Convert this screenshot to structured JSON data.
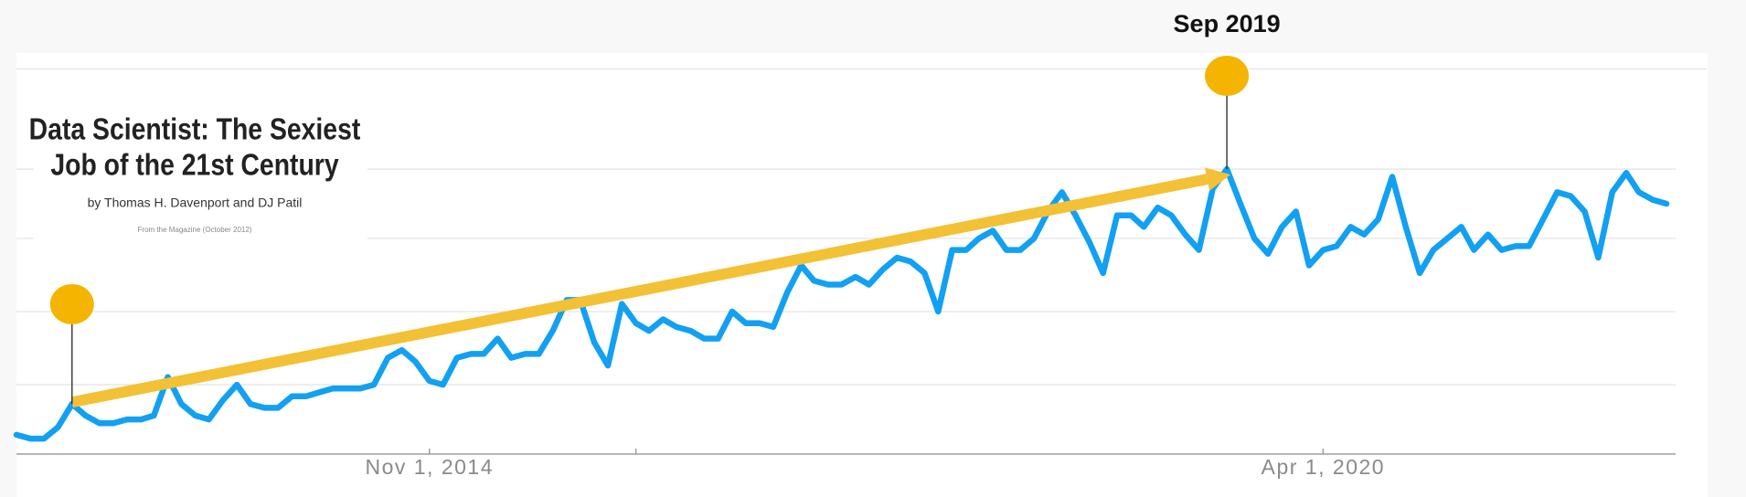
{
  "chart_data": {
    "type": "line",
    "x": [
      "2012-05-01",
      "2012-06-01",
      "2012-07-01",
      "2012-08-01",
      "2012-09-01",
      "2012-10-01",
      "2012-11-01",
      "2012-12-01",
      "2013-01-01",
      "2013-02-01",
      "2013-03-01",
      "2013-04-01",
      "2013-05-01",
      "2013-06-01",
      "2013-07-01",
      "2013-08-01",
      "2013-09-01",
      "2013-10-01",
      "2013-11-01",
      "2013-12-01",
      "2014-01-01",
      "2014-02-01",
      "2014-03-01",
      "2014-04-01",
      "2014-05-01",
      "2014-06-01",
      "2014-07-01",
      "2014-08-01",
      "2014-09-01",
      "2014-10-01",
      "2014-11-01",
      "2014-12-01",
      "2015-01-01",
      "2015-02-01",
      "2015-03-01",
      "2015-04-01",
      "2015-05-01",
      "2015-06-01",
      "2015-07-01",
      "2015-08-01",
      "2015-09-01",
      "2015-10-01",
      "2015-11-01",
      "2015-12-01",
      "2016-01-01",
      "2016-02-01",
      "2016-03-01",
      "2016-04-01",
      "2016-05-01",
      "2016-06-01",
      "2016-07-01",
      "2016-08-01",
      "2016-09-01",
      "2016-10-01",
      "2016-11-01",
      "2016-12-01",
      "2017-01-01",
      "2017-02-01",
      "2017-03-01",
      "2017-04-01",
      "2017-05-01",
      "2017-06-01",
      "2017-07-01",
      "2017-08-01",
      "2017-09-01",
      "2017-10-01",
      "2017-11-01",
      "2017-12-01",
      "2018-01-01",
      "2018-02-01",
      "2018-03-01",
      "2018-04-01",
      "2018-05-01",
      "2018-06-01",
      "2018-07-01",
      "2018-08-01",
      "2018-09-01",
      "2018-10-01",
      "2018-11-01",
      "2018-12-01",
      "2019-01-01",
      "2019-02-01",
      "2019-03-01",
      "2019-04-01",
      "2019-05-01",
      "2019-06-01",
      "2019-07-01",
      "2019-08-01",
      "2019-09-01",
      "2019-10-01",
      "2019-11-01",
      "2019-12-01",
      "2020-01-01",
      "2020-02-01",
      "2020-03-01",
      "2020-04-01",
      "2020-05-01",
      "2020-06-01",
      "2020-07-01",
      "2020-08-01",
      "2020-09-01",
      "2020-10-01",
      "2020-11-01",
      "2020-12-01",
      "2021-01-01",
      "2021-02-01",
      "2021-03-01",
      "2021-04-01",
      "2021-05-01",
      "2021-06-01",
      "2021-07-01",
      "2021-08-01",
      "2021-09-01",
      "2021-10-01",
      "2021-11-01",
      "2021-12-01",
      "2022-01-01",
      "2022-02-01",
      "2022-03-01",
      "2022-04-01",
      "2022-05-01"
    ],
    "values": [
      5,
      4,
      4,
      7,
      13,
      10,
      8,
      8,
      9,
      9,
      10,
      20,
      13,
      10,
      9,
      14,
      18,
      13,
      12,
      12,
      15,
      15,
      16,
      17,
      17,
      17,
      18,
      25,
      27,
      24,
      19,
      18,
      25,
      26,
      26,
      30,
      25,
      26,
      26,
      32,
      40,
      40,
      29,
      23,
      39,
      34,
      32,
      35,
      33,
      32,
      30,
      30,
      37,
      34,
      34,
      33,
      42,
      49,
      45,
      44,
      44,
      46,
      44,
      48,
      51,
      50,
      47,
      37,
      53,
      53,
      56,
      58,
      53,
      53,
      56,
      63,
      68,
      62,
      55,
      47,
      62,
      62,
      59,
      64,
      62,
      57,
      53,
      69,
      74,
      65,
      56,
      52,
      59,
      63,
      49,
      53,
      54,
      59,
      57,
      61,
      72,
      59,
      47,
      53,
      56,
      59,
      53,
      57,
      53,
      54,
      54,
      61,
      68,
      67,
      63,
      51,
      68,
      73,
      68,
      66,
      65
    ],
    "color": "#12a0f2",
    "xlim": [
      "2012-05-01",
      "2022-05-01"
    ],
    "xticks": [
      {
        "value": "2014-11-01",
        "label": "Nov 1, 2014"
      },
      {
        "value": "2016-02-01",
        "label": null
      },
      {
        "value": "2020-04-01",
        "label": "Apr 1, 2020"
      }
    ],
    "ylim": [
      0,
      100
    ],
    "yticks": [
      0,
      18,
      37,
      56,
      74,
      100
    ],
    "grid": true,
    "annotations": [
      {
        "x": "2012-09-01"
      },
      {
        "x": "2019-09-01",
        "label": "Sep 2019"
      }
    ],
    "annotation_color": "#f4b400",
    "arrow_color": "#f2c136",
    "inset": {
      "title_line1": "Data Scientist: The Sexiest",
      "title_line2": "Job of the 21st Century",
      "byline": "by Thomas H. Davenport and DJ Patil",
      "source": "From the Magazine (October 2012)"
    }
  }
}
